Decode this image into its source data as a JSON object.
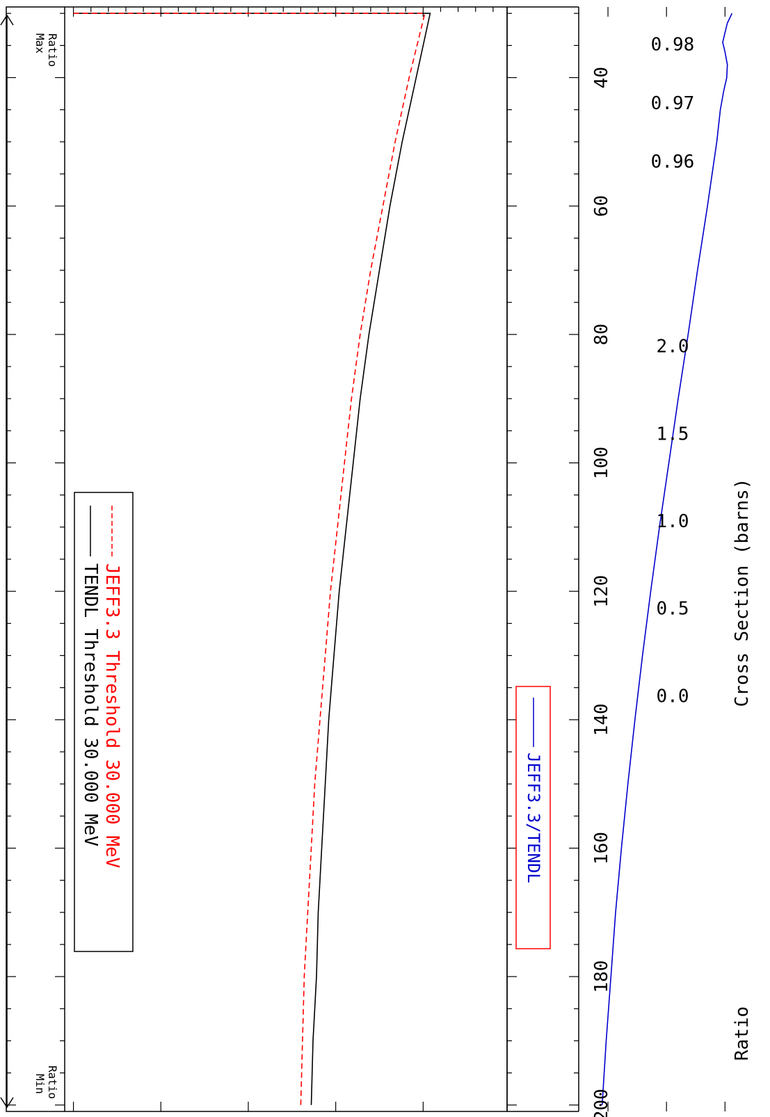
{
  "colors": {
    "axis": "#000000",
    "tendl": "#000000",
    "jeff": "#ff0000",
    "ratio": "#0000cc",
    "background": "#ffffff"
  },
  "side_labels": {
    "max": "Max",
    "max_sub": "Ratio",
    "min": "Min",
    "min_sub": "Ratio"
  },
  "chart_data": [
    {
      "type": "line",
      "ylabel": "Cross Section (barns)",
      "xlim": [
        29,
        201
      ],
      "ylim": [
        -0.05,
        2.48
      ],
      "x_ticks": [
        40,
        60,
        80,
        100,
        120,
        140,
        160,
        180,
        200
      ],
      "y_ticks": [
        "0.0",
        "0.5",
        "1.0",
        "1.5",
        "2.0"
      ],
      "legend_placement": "top-left",
      "series": [
        {
          "name": "TENDL Threshold 30.000 MeV",
          "style": "solid",
          "x": [
            30,
            30,
            40,
            50,
            60,
            70,
            80,
            90,
            100,
            110,
            120,
            130,
            140,
            150,
            160,
            170,
            180,
            190,
            200
          ],
          "y": [
            0.0,
            2.04,
            1.96,
            1.88,
            1.81,
            1.75,
            1.69,
            1.64,
            1.6,
            1.56,
            1.52,
            1.49,
            1.46,
            1.44,
            1.42,
            1.4,
            1.39,
            1.37,
            1.36
          ]
        },
        {
          "name": "JEFF3.3 Threshold 30.000 MeV",
          "style": "dashed",
          "x": [
            30,
            30,
            40,
            50,
            60,
            70,
            80,
            90,
            100,
            110,
            120,
            130,
            140,
            150,
            160,
            170,
            180,
            190,
            200
          ],
          "y": [
            0.0,
            2.01,
            1.92,
            1.84,
            1.77,
            1.7,
            1.64,
            1.59,
            1.55,
            1.51,
            1.47,
            1.44,
            1.41,
            1.38,
            1.36,
            1.34,
            1.32,
            1.31,
            1.3
          ]
        }
      ]
    },
    {
      "type": "line",
      "ylabel": "Ratio",
      "xlim": [
        29,
        201
      ],
      "ylim": [
        0.955,
        0.9865
      ],
      "x_ticks": [
        40,
        60,
        80,
        100,
        120,
        140,
        160,
        180,
        200
      ],
      "y_ticks": [
        "0.96",
        "0.97",
        "0.98"
      ],
      "legend_placement": "top-left",
      "series": [
        {
          "name": "JEFF3.3/TENDL",
          "style": "solid",
          "x": [
            30,
            31.5,
            33,
            34.5,
            36,
            38,
            40,
            42,
            45,
            50,
            55,
            60,
            70,
            80,
            90,
            100,
            110,
            120,
            130,
            140,
            150,
            160,
            170,
            180,
            190,
            200
          ],
          "y": [
            0.9812,
            0.9804,
            0.98,
            0.9796,
            0.98,
            0.9804,
            0.9803,
            0.9798,
            0.9792,
            0.9786,
            0.9778,
            0.977,
            0.9753,
            0.9737,
            0.972,
            0.9704,
            0.9688,
            0.9673,
            0.9659,
            0.9646,
            0.9634,
            0.9623,
            0.9613,
            0.9605,
            0.9597,
            0.959
          ]
        }
      ]
    }
  ]
}
